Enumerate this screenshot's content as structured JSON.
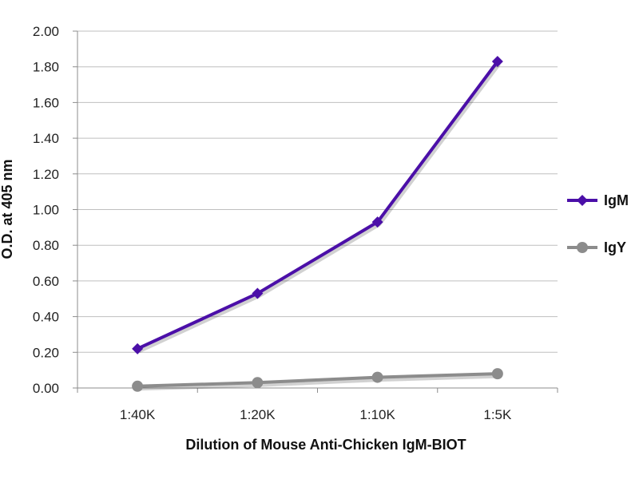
{
  "chart_data": {
    "type": "line",
    "categories": [
      "1:40K",
      "1:20K",
      "1:10K",
      "1:5K"
    ],
    "series": [
      {
        "name": "IgM",
        "values": [
          0.22,
          0.53,
          0.93,
          1.83
        ],
        "color": "#4B0FA8",
        "marker": "diamond"
      },
      {
        "name": "IgY",
        "values": [
          0.01,
          0.03,
          0.06,
          0.08
        ],
        "color": "#8C8C8C",
        "marker": "circle"
      }
    ],
    "title": "",
    "xlabel": "Dilution of Mouse Anti-Chicken IgM-BIOT",
    "ylabel": "O.D. at 405 nm",
    "ylim": [
      0,
      2
    ],
    "yticks": [
      "0.00",
      "0.20",
      "0.40",
      "0.60",
      "0.80",
      "1.00",
      "1.20",
      "1.40",
      "1.60",
      "1.80",
      "2.00"
    ],
    "grid": true,
    "legend_position": "right"
  }
}
